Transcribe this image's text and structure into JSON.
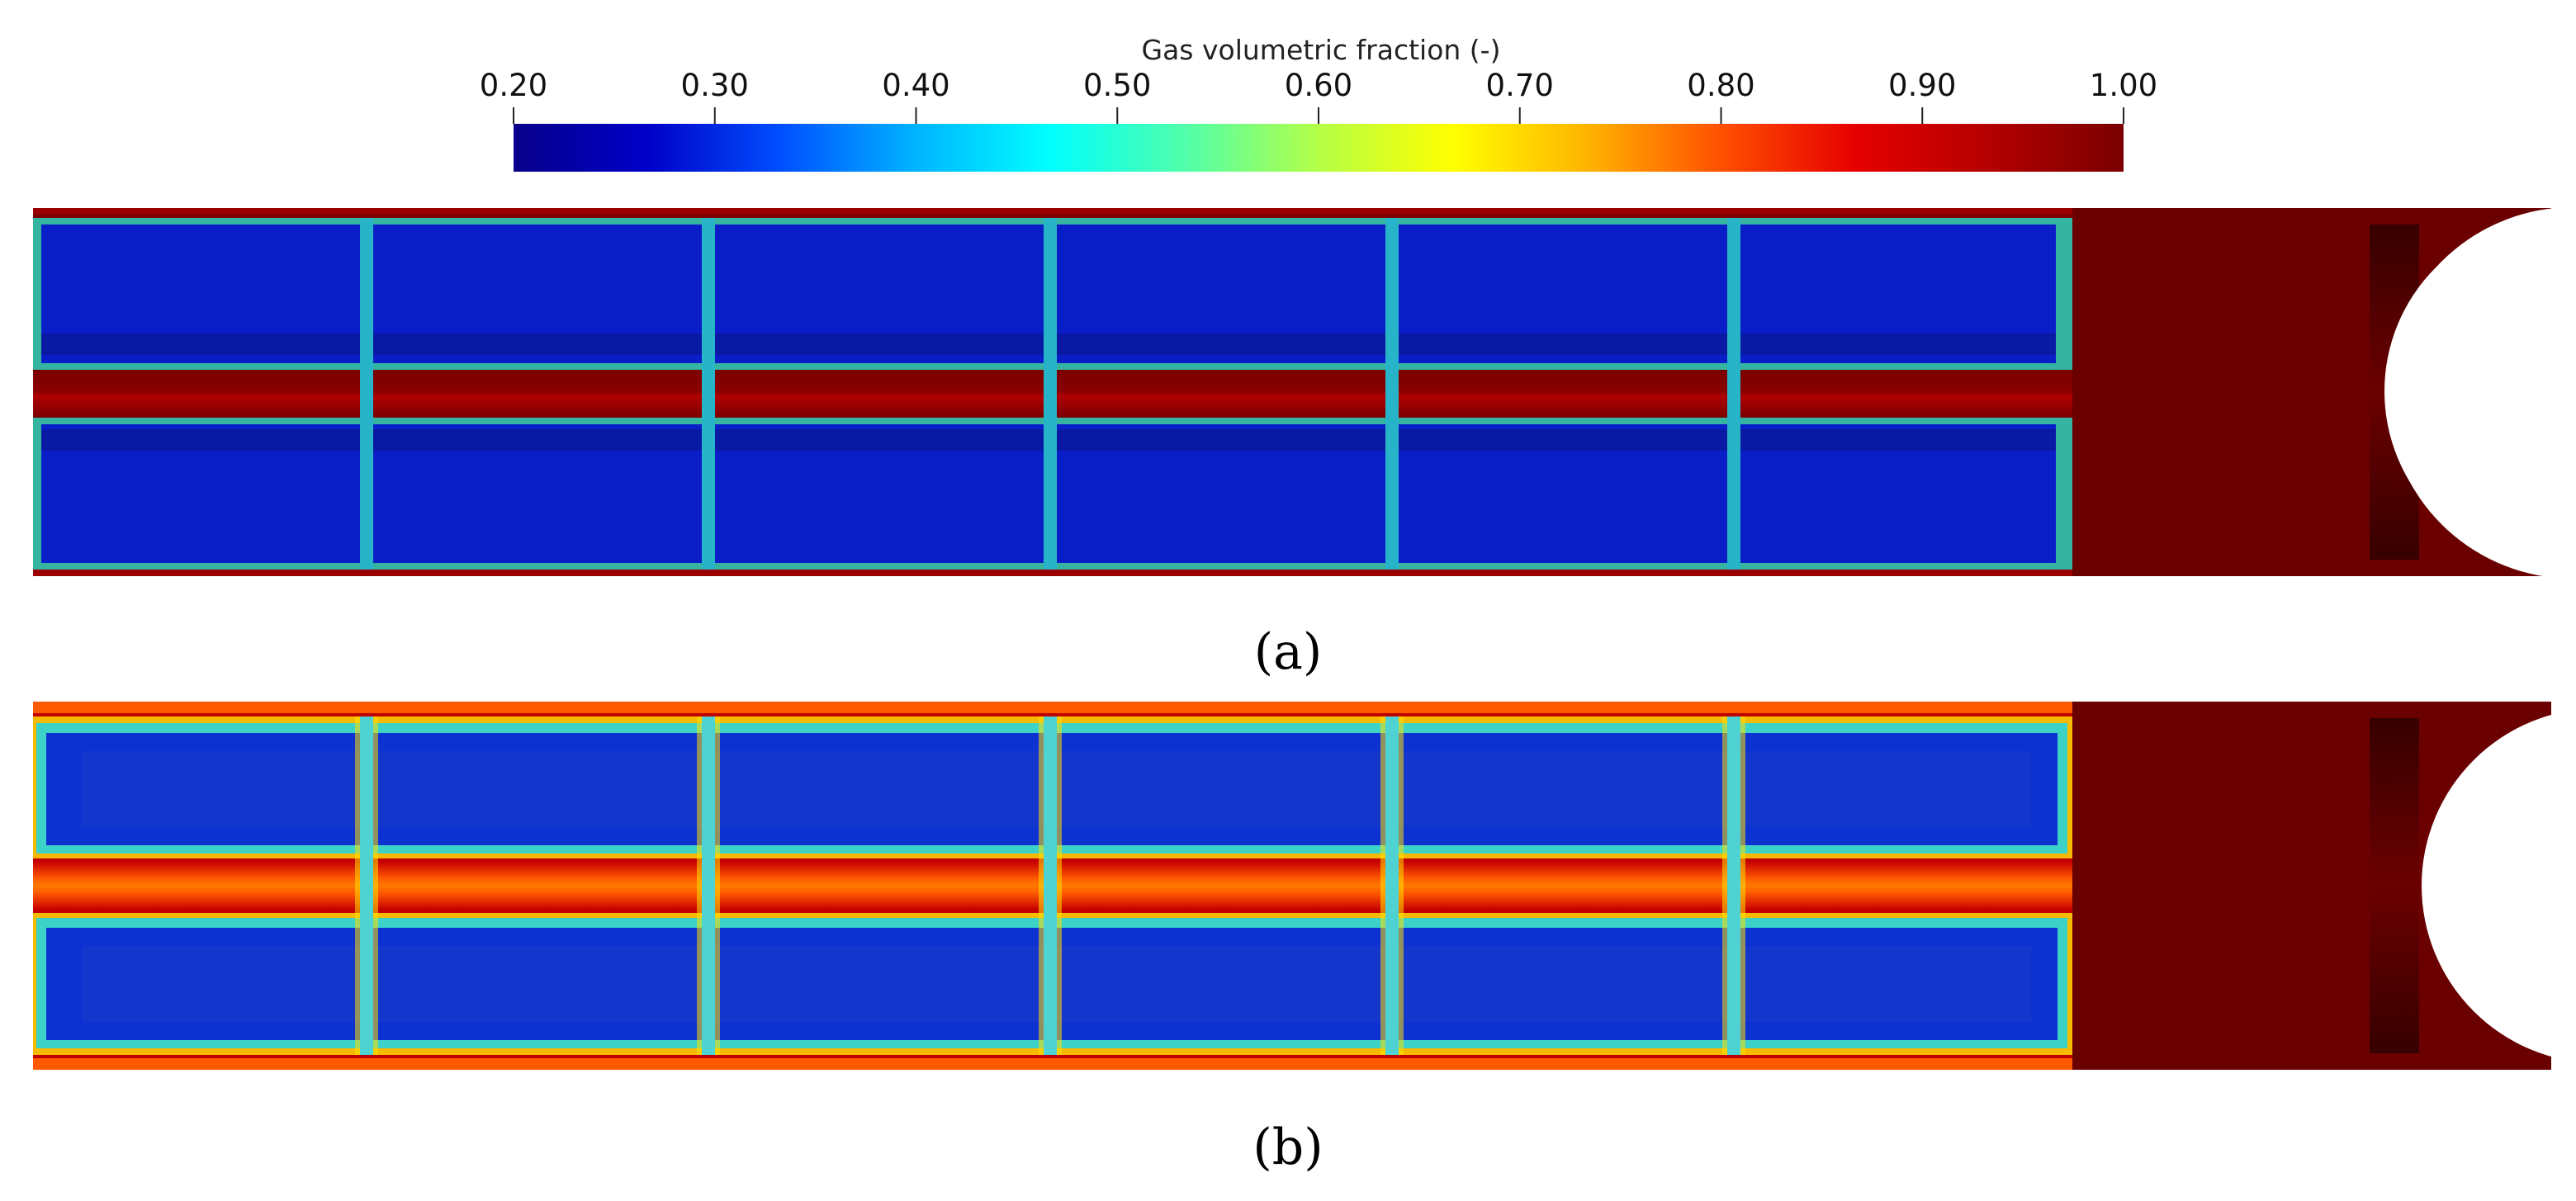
{
  "colorbar": {
    "title": "Gas volumetric fraction (-)",
    "ticks": [
      "0.20",
      "0.30",
      "0.40",
      "0.50",
      "0.60",
      "0.70",
      "0.80",
      "0.90",
      "1.00"
    ],
    "range": [
      0.2,
      1.0
    ],
    "colormap": "jet",
    "stops": [
      "#08008a",
      "#0000c8",
      "#0050ff",
      "#00b4ff",
      "#00ffff",
      "#50ffaa",
      "#b4ff46",
      "#ffff00",
      "#ffb400",
      "#ff5000",
      "#e60000",
      "#b40000",
      "#7a0000"
    ]
  },
  "panels": [
    {
      "label": "(a)",
      "channel_fill": "#0a1ec8",
      "channel_dark_band": "#081a9c",
      "rib_color": "#28b4c8",
      "liquid_color": "#7a0000"
    },
    {
      "label": "(b)",
      "channel_fill": "#0c32d2",
      "channel_dark_band": "#1a3cc8",
      "rib_color": "#4ed2d2",
      "liquid_color": "#7a0000"
    }
  ],
  "colors": {
    "outlet": "#6b0000",
    "outlet_shadow": "#3a0000",
    "background": "#ffffff"
  }
}
